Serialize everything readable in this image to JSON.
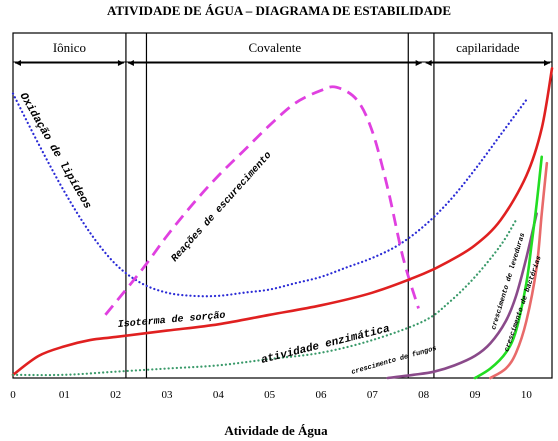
{
  "chart_data": {
    "type": "line",
    "title": "ATIVIDADE DE ÁGUA  –  DIAGRAMA DE ESTABILIDADE",
    "xlabel": "Atividade de Água",
    "ylabel": "",
    "xlim": [
      0,
      1.05
    ],
    "ylim": [
      0,
      1
    ],
    "x_ticks": [
      "0",
      "01",
      "02",
      "03",
      "04",
      "05",
      "06",
      "07",
      "08",
      "09",
      "10"
    ],
    "zones": [
      {
        "label": "Iônico",
        "from": 0,
        "to": 0.22
      },
      {
        "label": "Covalente",
        "from": 0.22,
        "to": 0.8
      },
      {
        "label": "capilaridade",
        "from": 0.8,
        "to": 1.05
      }
    ],
    "vertical_lines": [
      0.22,
      0.26,
      0.77,
      0.82
    ],
    "series": [
      {
        "name": "Oxidação de lipídeos",
        "color": "#2b2bd6",
        "style": "dotted",
        "x": [
          0,
          0.05,
          0.1,
          0.15,
          0.2,
          0.25,
          0.3,
          0.35,
          0.4,
          0.45,
          0.5,
          0.55,
          0.6,
          0.65,
          0.7,
          0.75,
          0.8,
          0.85,
          0.9,
          0.95,
          1.0
        ],
        "y": [
          0.9,
          0.74,
          0.59,
          0.46,
          0.36,
          0.3,
          0.27,
          0.26,
          0.26,
          0.27,
          0.28,
          0.3,
          0.32,
          0.35,
          0.38,
          0.42,
          0.48,
          0.56,
          0.66,
          0.77,
          0.88
        ]
      },
      {
        "name": "Reações de escurecimento",
        "color": "#e040e0",
        "style": "dashed",
        "x": [
          0.18,
          0.25,
          0.3,
          0.35,
          0.4,
          0.45,
          0.5,
          0.55,
          0.6,
          0.63,
          0.67,
          0.7,
          0.73,
          0.76,
          0.79
        ],
        "y": [
          0.2,
          0.34,
          0.45,
          0.55,
          0.64,
          0.72,
          0.8,
          0.87,
          0.91,
          0.92,
          0.88,
          0.78,
          0.6,
          0.38,
          0.22
        ]
      },
      {
        "name": "Isoterma de sorção",
        "color": "#e02020",
        "style": "solid",
        "x": [
          0,
          0.05,
          0.1,
          0.15,
          0.2,
          0.3,
          0.4,
          0.5,
          0.6,
          0.7,
          0.8,
          0.85,
          0.9,
          0.95,
          1.0,
          1.03,
          1.05
        ],
        "y": [
          0.01,
          0.07,
          0.1,
          0.12,
          0.13,
          0.15,
          0.17,
          0.2,
          0.23,
          0.27,
          0.33,
          0.37,
          0.42,
          0.5,
          0.64,
          0.79,
          0.98
        ]
      },
      {
        "name": "atividade enzimática",
        "color": "#3a9a6a",
        "style": "dotted",
        "x": [
          0,
          0.1,
          0.2,
          0.3,
          0.4,
          0.5,
          0.6,
          0.7,
          0.8,
          0.85,
          0.9,
          0.95,
          0.98
        ],
        "y": [
          0.01,
          0.01,
          0.02,
          0.03,
          0.04,
          0.06,
          0.08,
          0.12,
          0.18,
          0.24,
          0.32,
          0.42,
          0.5
        ]
      },
      {
        "name": "crescimento de fungos",
        "color": "#8a4a8a",
        "style": "solid",
        "x": [
          0.73,
          0.78,
          0.82,
          0.86,
          0.9,
          0.93,
          0.96,
          0.98,
          1.0,
          1.02
        ],
        "y": [
          0.0,
          0.01,
          0.02,
          0.04,
          0.07,
          0.11,
          0.18,
          0.26,
          0.38,
          0.52
        ]
      },
      {
        "name": "crescimento de leveduras",
        "color": "#22dd22",
        "style": "solid",
        "x": [
          0.9,
          0.93,
          0.96,
          0.98,
          1.0,
          1.01,
          1.02,
          1.03
        ],
        "y": [
          0.0,
          0.03,
          0.08,
          0.15,
          0.3,
          0.42,
          0.55,
          0.7
        ]
      },
      {
        "name": "crescimento de bactérias",
        "color": "#e86a6a",
        "style": "solid",
        "x": [
          0.93,
          0.96,
          0.98,
          1.0,
          1.02,
          1.03,
          1.04
        ],
        "y": [
          0.0,
          0.03,
          0.08,
          0.18,
          0.35,
          0.52,
          0.68
        ]
      }
    ],
    "curve_labels": [
      {
        "text": "Oxidação de lipídeos"
      },
      {
        "text": "Reações de escurecimento"
      },
      {
        "text": "Isoterma de sorção"
      },
      {
        "text": "atividade enzimática"
      },
      {
        "text": "crescimento de fungos"
      },
      {
        "text": "crescimento de leveduras"
      },
      {
        "text": "crescimento de bactérias"
      }
    ]
  }
}
